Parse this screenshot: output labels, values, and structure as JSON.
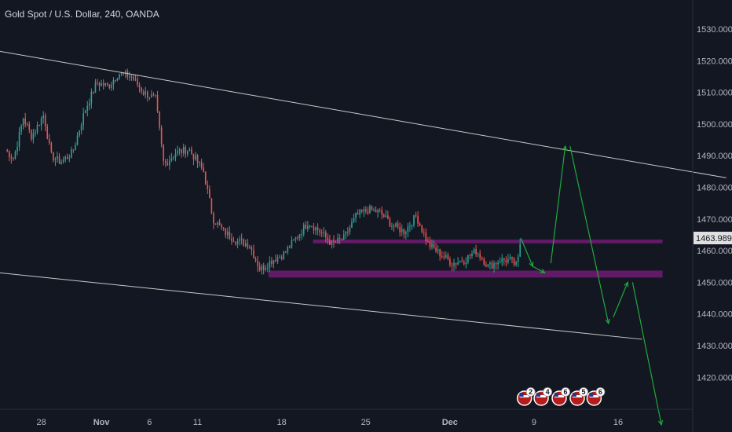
{
  "header": {
    "title": "Gold Spot / U.S. Dollar, 240, OANDA"
  },
  "colors": {
    "background": "#131722",
    "up": "#26a69a",
    "down": "#ef5350",
    "zone": "#6a1b6e",
    "channel": "#c8c8c8",
    "projection": "#1faa3c",
    "axis_text": "#b2b5be",
    "price_tag_bg": "#e0e0e0"
  },
  "chart_data": {
    "type": "candlestick",
    "symbol": "XAUUSD",
    "timeframe": "240",
    "ylim": [
      1410,
      1538
    ],
    "y_ticks": [
      "1530.000",
      "1520.000",
      "1510.000",
      "1500.000",
      "1490.000",
      "1480.000",
      "1470.000",
      "1460.000",
      "1450.000",
      "1440.000",
      "1430.000",
      "1420.000"
    ],
    "x_tick_labels": [
      "28",
      "Nov",
      "6",
      "11",
      "18",
      "25",
      "Dec",
      "9",
      "16"
    ],
    "bold_x_labels": [
      "Nov",
      "Dec"
    ],
    "last_price": "1463.989",
    "price_path": [
      [
        -1,
        1492
      ],
      [
        -0.3,
        1489
      ],
      [
        0.5,
        1502
      ],
      [
        1.2,
        1496
      ],
      [
        2.2,
        1503
      ],
      [
        2.8,
        1490
      ],
      [
        3.6,
        1488
      ],
      [
        4.6,
        1491
      ],
      [
        5.6,
        1504
      ],
      [
        6.6,
        1513
      ],
      [
        7.6,
        1512
      ],
      [
        8.4,
        1516
      ],
      [
        9.5,
        1515
      ],
      [
        10.5,
        1510
      ],
      [
        11.5,
        1508
      ],
      [
        12.2,
        1487
      ],
      [
        13.2,
        1491
      ],
      [
        14.3,
        1492
      ],
      [
        15.5,
        1485
      ],
      [
        16.3,
        1470
      ],
      [
        17.2,
        1466
      ],
      [
        18.3,
        1463
      ],
      [
        19.3,
        1462
      ],
      [
        20.2,
        1454
      ],
      [
        21.2,
        1457
      ],
      [
        22.2,
        1459
      ],
      [
        23.2,
        1464
      ],
      [
        24.2,
        1469
      ],
      [
        25.2,
        1466
      ],
      [
        26.2,
        1462
      ],
      [
        27.2,
        1464
      ],
      [
        28.2,
        1471
      ],
      [
        29.2,
        1473
      ],
      [
        30.2,
        1472
      ],
      [
        31.2,
        1468
      ],
      [
        32.2,
        1466
      ],
      [
        33.2,
        1471
      ],
      [
        34.2,
        1462
      ],
      [
        35.2,
        1459
      ],
      [
        36.2,
        1456
      ],
      [
        37.2,
        1457
      ],
      [
        38.2,
        1460
      ],
      [
        39.2,
        1455
      ],
      [
        40.2,
        1457
      ],
      [
        41.0,
        1457
      ],
      [
        41.6,
        1455
      ],
      [
        41.9,
        1464
      ]
    ],
    "zones": [
      {
        "name": "resistance-zone",
        "x_start": 24.6,
        "x_end": 53.7,
        "y_low": 1462.3,
        "y_high": 1463.5
      },
      {
        "name": "support-zone",
        "x_start": 20.9,
        "x_end": 53.7,
        "y_low": 1451.5,
        "y_high": 1453.7
      }
    ],
    "channel_lines": [
      {
        "name": "upper-channel",
        "points": [
          [
            -1.5,
            1523
          ],
          [
            59,
            1483
          ]
        ]
      },
      {
        "name": "lower-channel",
        "points": [
          [
            -1.5,
            1453
          ],
          [
            52,
            1432
          ]
        ]
      }
    ],
    "projection_segments": [
      [
        [
          41.9,
          1464
        ],
        [
          42.9,
          1455
        ]
      ],
      [
        [
          42.9,
          1455
        ],
        [
          43.9,
          1453
        ]
      ],
      [
        [
          44.4,
          1456
        ],
        [
          45.6,
          1493
        ]
      ],
      [
        [
          46.0,
          1493
        ],
        [
          49.2,
          1437
        ]
      ],
      [
        [
          49.6,
          1439
        ],
        [
          50.8,
          1450
        ]
      ],
      [
        [
          51.2,
          1450
        ],
        [
          53.6,
          1405
        ]
      ]
    ],
    "events": [
      {
        "label": "2",
        "x": 42.2
      },
      {
        "label": "4",
        "x": 43.6
      },
      {
        "label": "6",
        "x": 45.1
      },
      {
        "label": "5",
        "x": 46.6
      },
      {
        "label": "6",
        "x": 48.0
      }
    ]
  }
}
